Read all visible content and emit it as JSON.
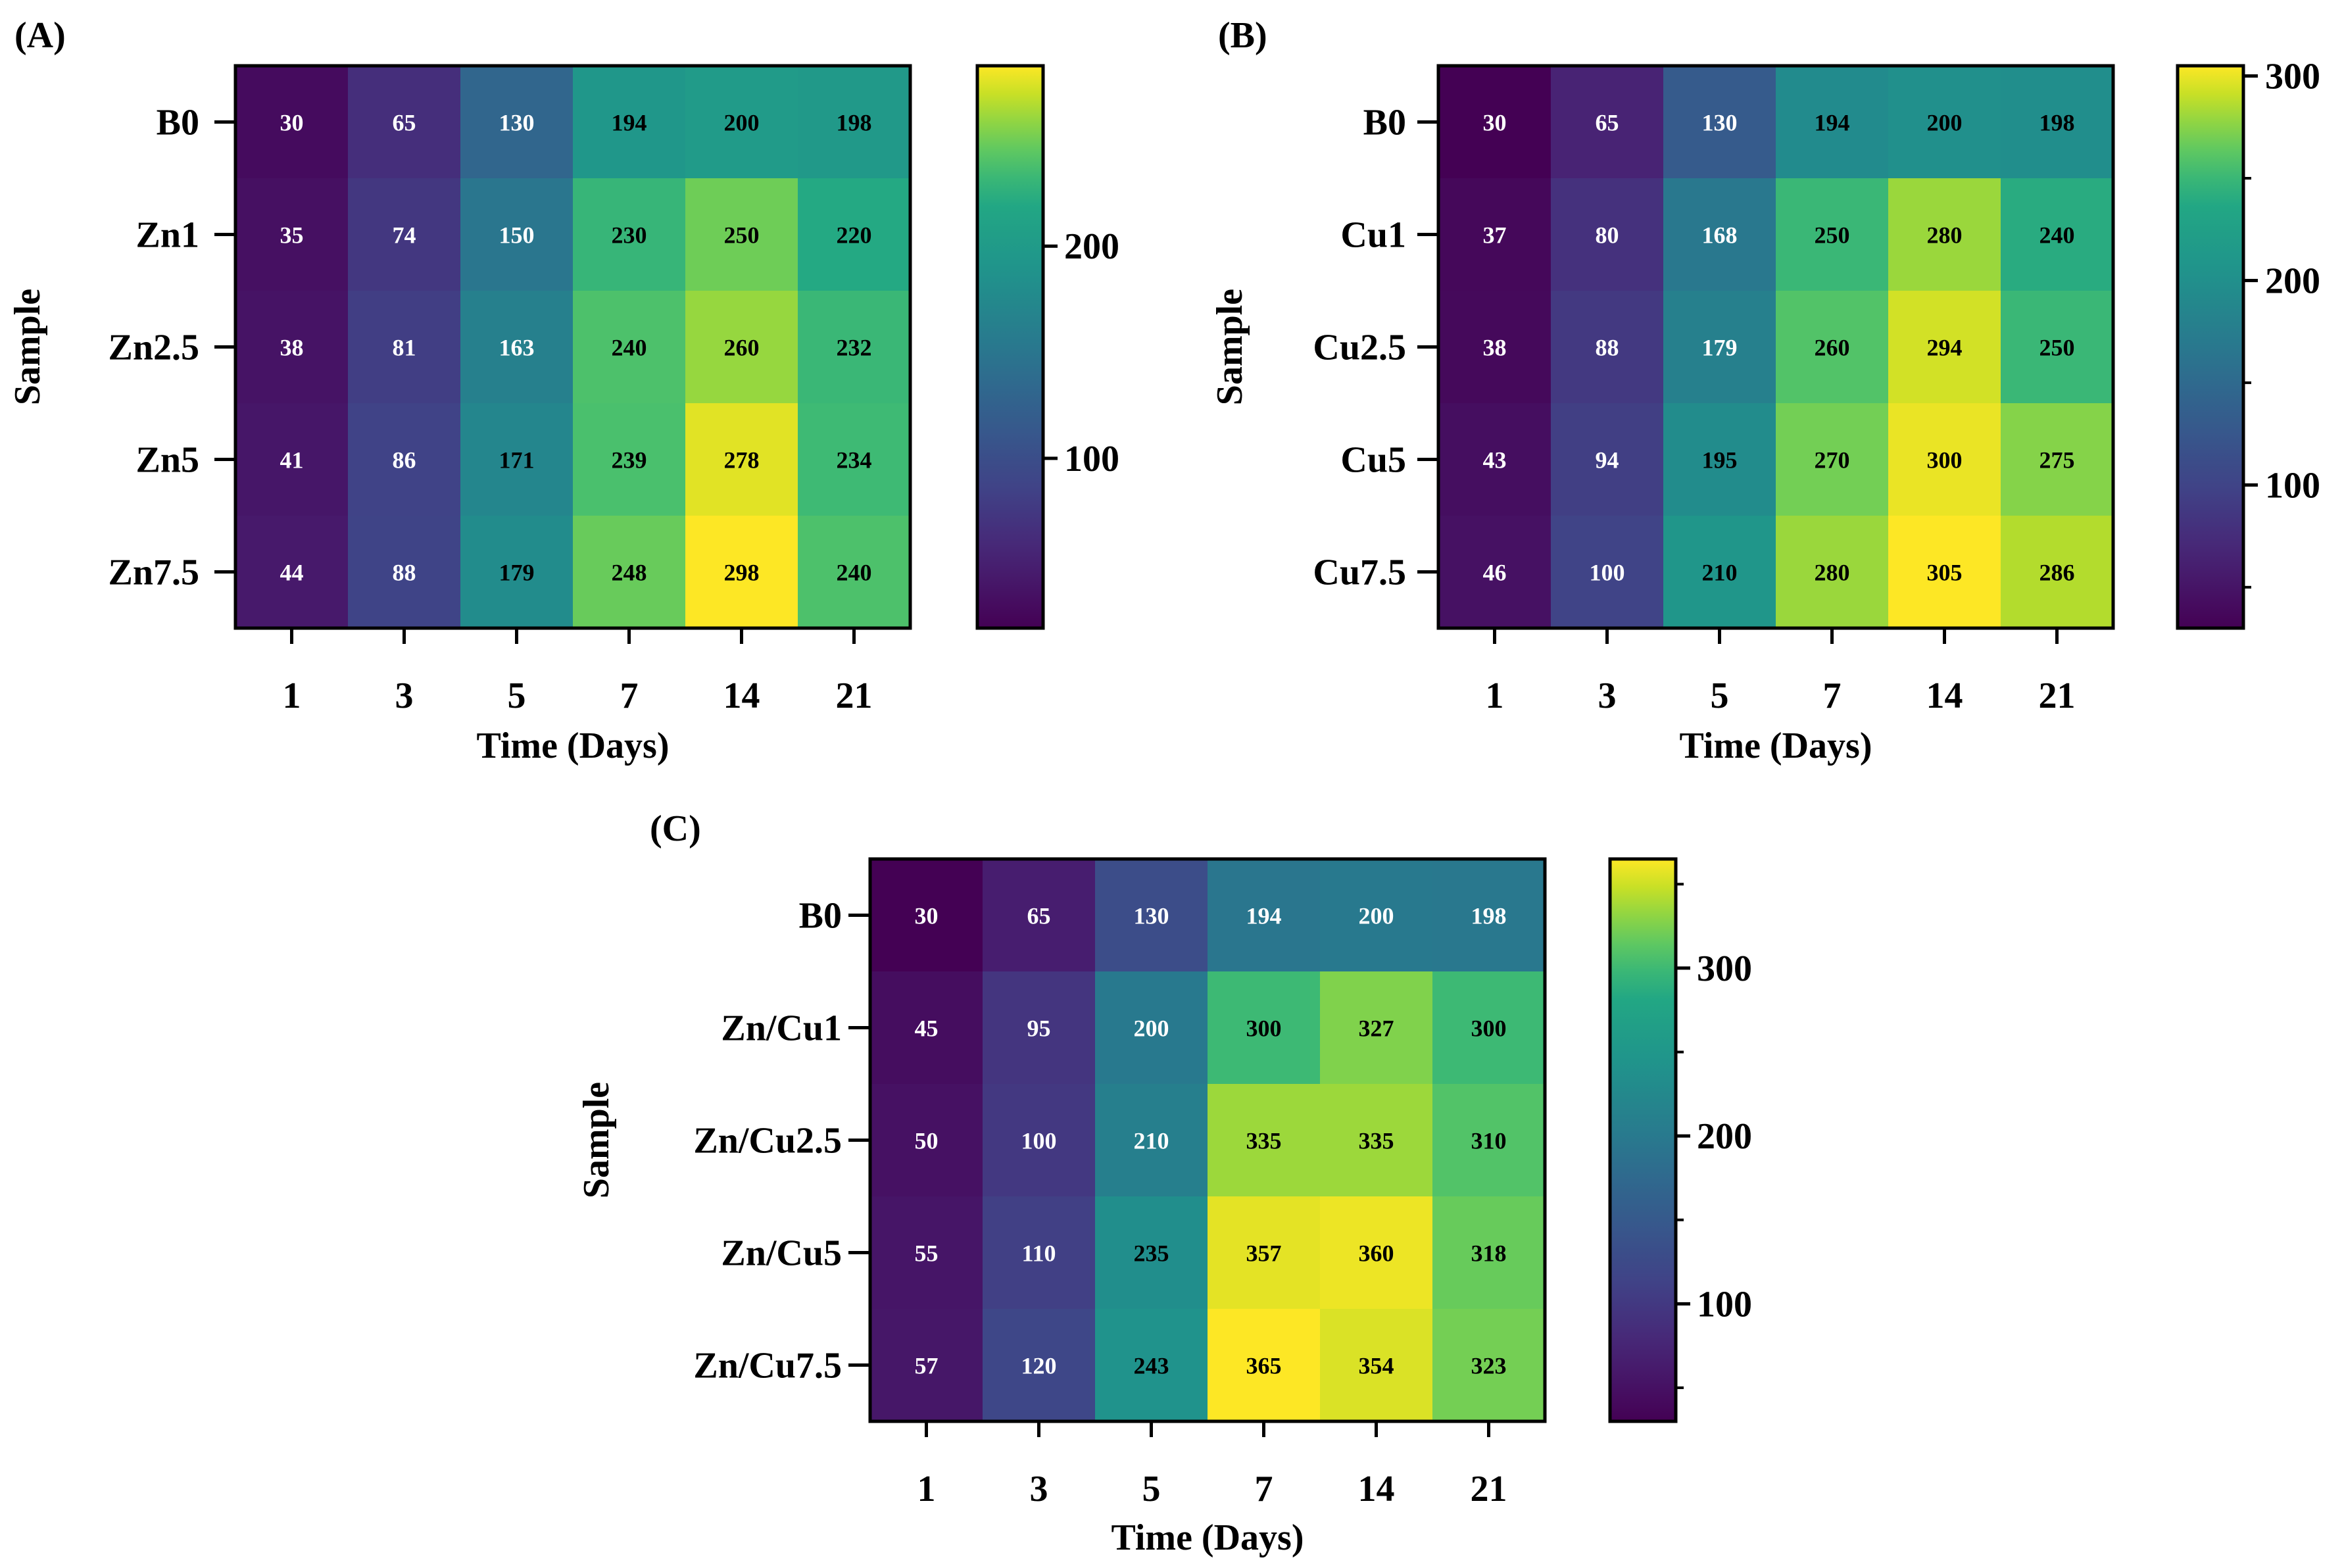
{
  "chart_data": [
    {
      "type": "heatmap",
      "panel_label": "(A)",
      "xlabel": "Time (Days)",
      "ylabel": "Sample",
      "x_categories": [
        "1",
        "3",
        "5",
        "7",
        "14",
        "21"
      ],
      "y_categories": [
        "B0",
        "Zn1",
        "Zn2.5",
        "Zn5",
        "Zn7.5"
      ],
      "values": [
        [
          30,
          65,
          130,
          194,
          200,
          198
        ],
        [
          35,
          74,
          150,
          230,
          250,
          220
        ],
        [
          38,
          81,
          163,
          240,
          260,
          232
        ],
        [
          41,
          86,
          171,
          239,
          278,
          234
        ],
        [
          44,
          88,
          179,
          248,
          298,
          240
        ]
      ],
      "color_range": [
        20,
        285
      ],
      "colorbar_ticks": [
        {
          "value": 100,
          "label": "100"
        },
        {
          "value": 200,
          "label": "200"
        }
      ],
      "colorbar_minor_ticks": [],
      "colormap": "viridis"
    },
    {
      "type": "heatmap",
      "panel_label": "(B)",
      "xlabel": "Time (Days)",
      "ylabel": "Sample",
      "x_categories": [
        "1",
        "3",
        "5",
        "7",
        "14",
        "21"
      ],
      "y_categories": [
        "B0",
        "Cu1",
        "Cu2.5",
        "Cu5",
        "Cu7.5"
      ],
      "values": [
        [
          30,
          65,
          130,
          194,
          200,
          198
        ],
        [
          37,
          80,
          168,
          250,
          280,
          240
        ],
        [
          38,
          88,
          179,
          260,
          294,
          250
        ],
        [
          43,
          94,
          195,
          270,
          300,
          275
        ],
        [
          46,
          100,
          210,
          280,
          305,
          286
        ]
      ],
      "color_range": [
        30,
        305
      ],
      "colorbar_ticks": [
        {
          "value": 100,
          "label": "100"
        },
        {
          "value": 200,
          "label": "200"
        },
        {
          "value": 300,
          "label": "300"
        }
      ],
      "colorbar_minor_ticks": [
        50,
        150,
        250
      ],
      "colormap": "viridis"
    },
    {
      "type": "heatmap",
      "panel_label": "(C)",
      "xlabel": "Time (Days)",
      "ylabel": "Sample",
      "x_categories": [
        "1",
        "3",
        "5",
        "7",
        "14",
        "21"
      ],
      "y_categories": [
        "B0",
        "Zn/Cu1",
        "Zn/Cu2.5",
        "Zn/Cu5",
        "Zn/Cu7.5"
      ],
      "values": [
        [
          30,
          65,
          130,
          194,
          200,
          198
        ],
        [
          45,
          95,
          200,
          300,
          327,
          300
        ],
        [
          50,
          100,
          210,
          335,
          335,
          310
        ],
        [
          55,
          110,
          235,
          357,
          360,
          318
        ],
        [
          57,
          120,
          243,
          365,
          354,
          323
        ]
      ],
      "color_range": [
        30,
        365
      ],
      "colorbar_ticks": [
        {
          "value": 100,
          "label": "100"
        },
        {
          "value": 200,
          "label": "200"
        },
        {
          "value": 300,
          "label": "300"
        }
      ],
      "colorbar_minor_ticks": [
        50,
        150,
        250,
        350
      ],
      "colormap": "viridis"
    }
  ]
}
